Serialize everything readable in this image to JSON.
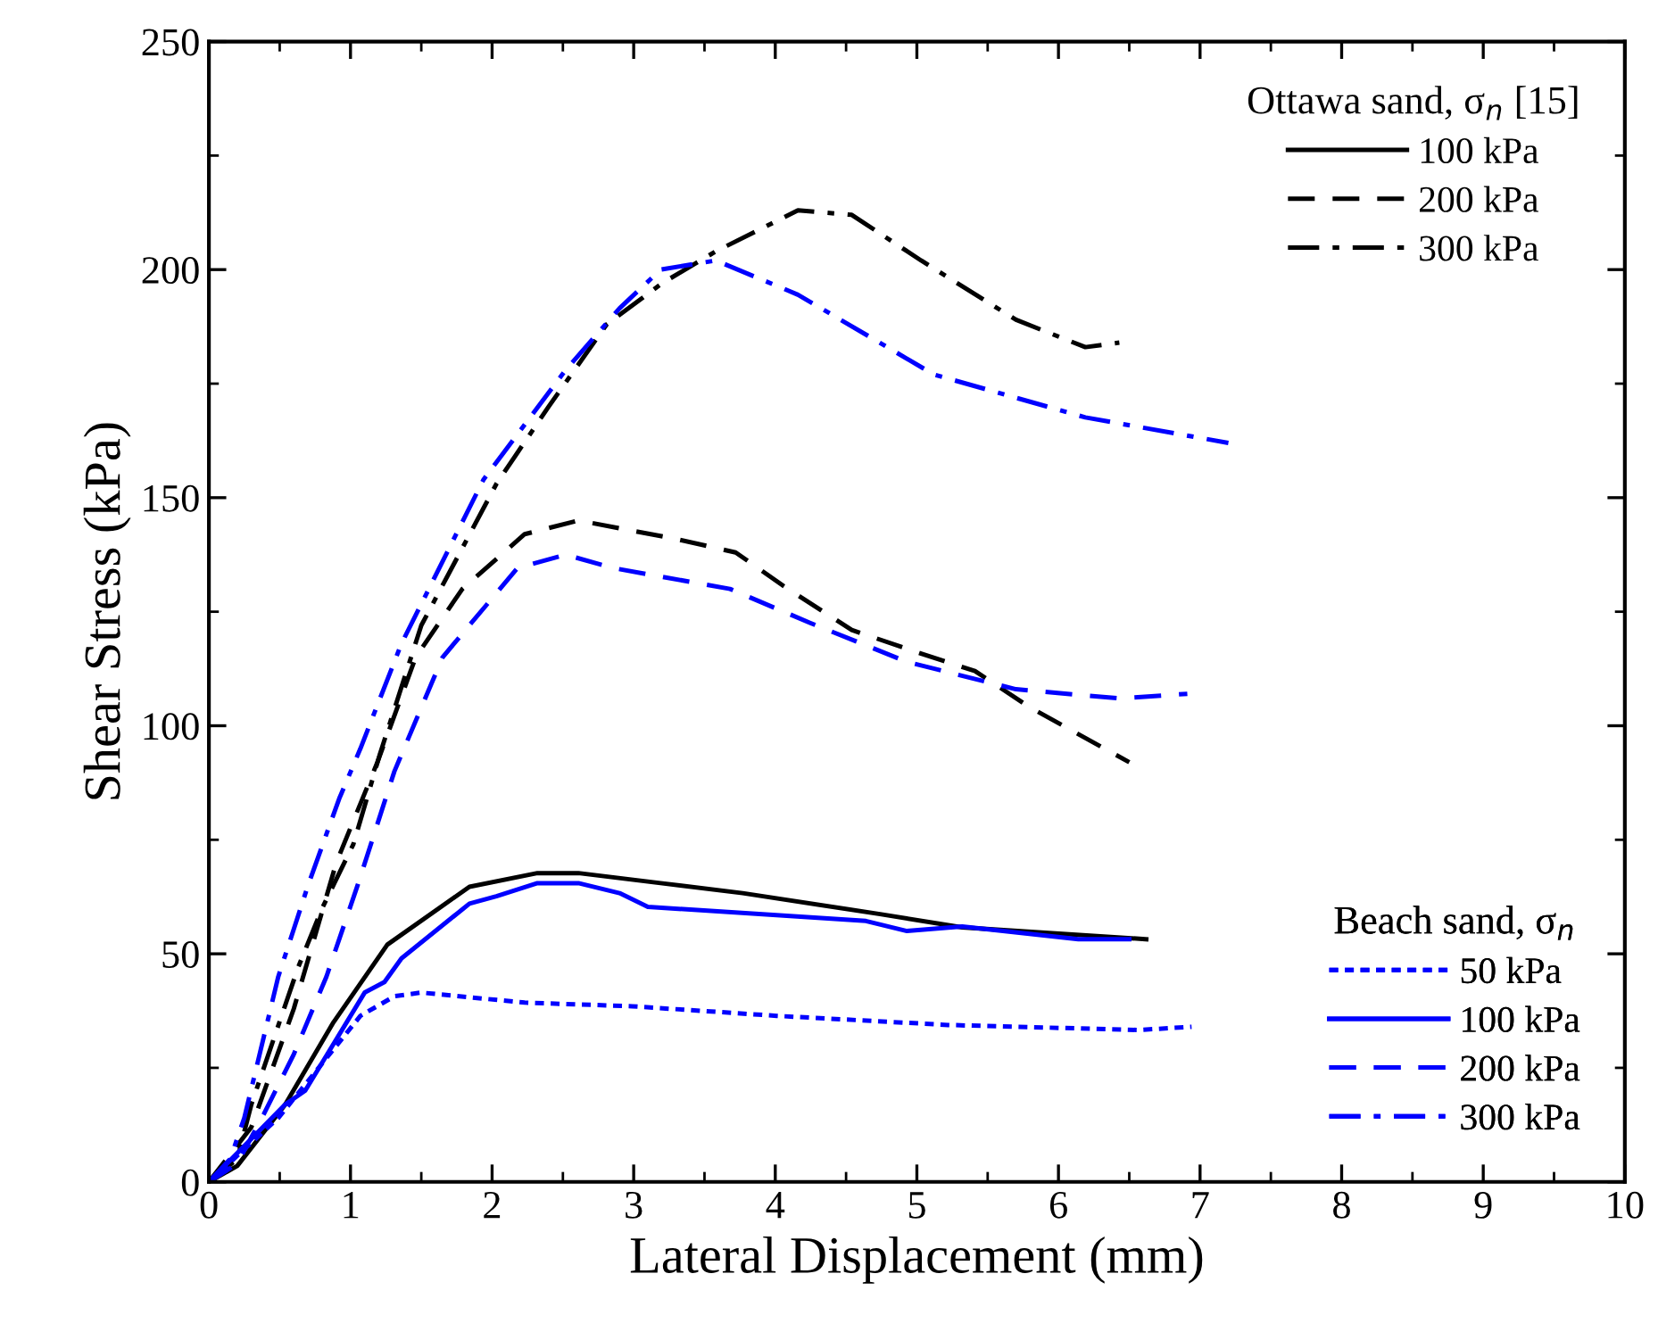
{
  "chart_data": {
    "type": "line",
    "xlabel": "Lateral Displacement (mm)",
    "ylabel": "Shear Stress (kPa)",
    "xlim": [
      0,
      10
    ],
    "xticks": [
      0,
      1,
      2,
      3,
      4,
      5,
      6,
      7,
      8,
      9,
      10
    ],
    "ylim": [
      0,
      250
    ],
    "yticks": [
      0,
      50,
      100,
      150,
      200,
      250
    ],
    "grid": false,
    "marker": "none",
    "legend": [
      "top right",
      "bottom right"
    ],
    "legend_title": [
      "Ottawa sand, σ$_{n}$ [15]",
      "Beach sand, σ$_{n}$"
    ],
    "series": [
      {
        "name": "100 kPa",
        "color": "#000000",
        "line_style": "solid",
        "x": [
          0,
          0.2,
          0.54,
          0.88,
          1.26,
          1.84,
          2.32,
          2.61,
          3.19,
          3.77,
          4.74,
          5.32,
          6.62
        ],
        "values": [
          0,
          3.5,
          17,
          35,
          52,
          64.7,
          67.7,
          67.7,
          65.5,
          63.3,
          58.7,
          55.8,
          53.2
        ]
      },
      {
        "name": "200 kPa",
        "color": "#000000",
        "line_style": "dashed",
        "x": [
          0,
          0.3,
          0.6,
          0.9,
          1.19,
          1.46,
          1.79,
          2.23,
          2.61,
          3.29,
          3.72,
          4.06,
          4.54,
          5.03,
          5.41,
          5.8,
          6.5
        ],
        "values": [
          0,
          12,
          38,
          70,
          92,
          115,
          130,
          142,
          145,
          141,
          138,
          130.6,
          121,
          115.8,
          112,
          104,
          92
        ]
      },
      {
        "name": "300 kPa",
        "color": "#000000",
        "line_style": "dashdot",
        "x": [
          0,
          0.2,
          0.3,
          0.63,
          0.8,
          1.02,
          1.21,
          1.5,
          2.03,
          2.4,
          2.81,
          3.2,
          3.58,
          4.16,
          4.54,
          5.03,
          5.7,
          6.19,
          6.43
        ],
        "values": [
          0,
          5,
          17,
          47,
          60,
          74,
          94,
          122,
          153,
          170,
          188,
          197,
          204,
          213,
          212,
          202,
          189,
          183,
          184
        ]
      },
      {
        "name": "50 kPa",
        "color": "#0000ff",
        "line_style": "dotted",
        "x": [
          0,
          0.49,
          1.07,
          1.31,
          1.5,
          2.23,
          2.99,
          4.01,
          5.22,
          6.57,
          6.94
        ],
        "values": [
          0,
          14,
          36.4,
          40.7,
          41.5,
          39.3,
          38.5,
          36.4,
          34.4,
          33.3,
          34
        ]
      },
      {
        "name": "100 kPa",
        "color": "#0000ff",
        "line_style": "solid",
        "x": [
          0,
          0.54,
          0.68,
          1.1,
          1.24,
          1.36,
          1.84,
          2.03,
          2.32,
          2.61,
          2.9,
          3.1,
          4.64,
          4.93,
          5.32,
          6.14,
          6.5
        ],
        "values": [
          0,
          17,
          20,
          41.5,
          43.8,
          49,
          61,
          62.6,
          65.5,
          65.5,
          63.3,
          60.3,
          57.2,
          55,
          56,
          53.2,
          53.2
        ]
      },
      {
        "name": "200 kPa",
        "color": "#0000ff",
        "line_style": "dashed",
        "x": [
          0,
          0.2,
          0.39,
          0.6,
          0.83,
          1.05,
          1.31,
          1.65,
          2.18,
          2.52,
          2.85,
          3.68,
          4.25,
          4.93,
          5.7,
          6.43,
          6.91
        ],
        "values": [
          0,
          4,
          15,
          28,
          45,
          65,
          90,
          115,
          134.6,
          137.5,
          134.6,
          130,
          122.5,
          114,
          108,
          106,
          107
        ]
      },
      {
        "name": "300 kPa",
        "color": "#0000ff",
        "line_style": "dashdot",
        "x": [
          0,
          0.15,
          0.25,
          0.49,
          0.7,
          0.92,
          1.07,
          1.36,
          1.94,
          2.52,
          2.9,
          3.19,
          3.58,
          4.16,
          5.12,
          6.19,
          7.2
        ],
        "values": [
          0,
          5,
          14,
          45,
          65,
          84,
          95,
          118,
          154,
          178,
          191.5,
          200,
          202,
          194.5,
          177,
          167.6,
          162
        ]
      }
    ]
  }
}
